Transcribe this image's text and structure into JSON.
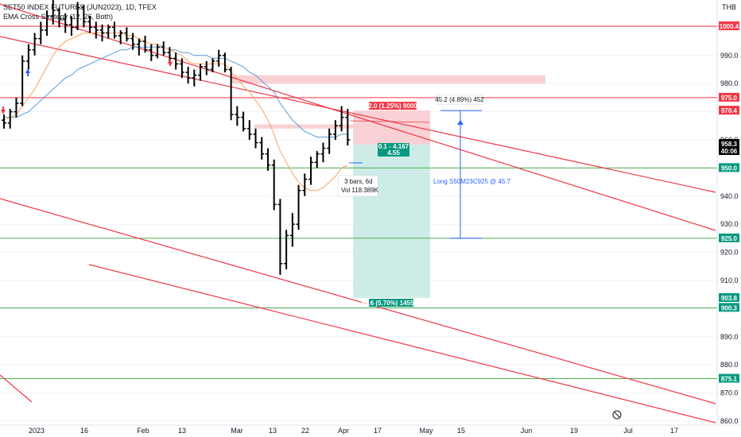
{
  "header": {
    "symbol": "SET50 INDEX FUTURES (JUN2023), 1D, TFEX",
    "indicator": "EMA Cross Strategy (12, 26, Both)",
    "currency": "THB"
  },
  "colors": {
    "up": "#000000",
    "channel": "#f23645",
    "resistance": "#f23645",
    "support": "#4caf50",
    "ema_fast": "#f7a45c",
    "ema_slow": "#5b9bd5",
    "stop_zone": "#f7c5c9",
    "target_zone": "#c6e9e3",
    "tag_red": "#f23645",
    "tag_green": "#089981",
    "price_tag": "#000000",
    "signal_up": "#2962ff",
    "signal_down": "#f23645"
  },
  "chart_data": {
    "type": "candlestick",
    "yaxis": {
      "min": 857,
      "max": 1011,
      "ticks": [
        860,
        870,
        880,
        890,
        900,
        910,
        920,
        930,
        940,
        950,
        960,
        970,
        980,
        990,
        1000
      ]
    },
    "xaxis": {
      "labels": [
        "2023",
        "16",
        "Feb",
        "13",
        "Mar",
        "13",
        "22",
        "Apr",
        "17",
        "May",
        "15",
        "Jun",
        "19",
        "Jul",
        "17"
      ]
    },
    "ohlc": [
      [
        967,
        969,
        964,
        966
      ],
      [
        966,
        971,
        964,
        970
      ],
      [
        970,
        975,
        968,
        973
      ],
      [
        973,
        990,
        972,
        988
      ],
      [
        988,
        994,
        985,
        992
      ],
      [
        992,
        998,
        990,
        996
      ],
      [
        996,
        1002,
        994,
        999
      ],
      [
        999,
        1006,
        997,
        1004
      ],
      [
        1004,
        1010,
        1001,
        1006
      ],
      [
        1006,
        1007,
        1000,
        1003
      ],
      [
        1003,
        1005,
        998,
        1001
      ],
      [
        1001,
        1004,
        997,
        1000
      ],
      [
        1000,
        1009,
        999,
        1007
      ],
      [
        1007,
        1008,
        1000,
        1002
      ],
      [
        1002,
        1004,
        998,
        1000
      ],
      [
        1000,
        1002,
        996,
        999
      ],
      [
        999,
        1001,
        995,
        998
      ],
      [
        998,
        1001,
        996,
        1000
      ],
      [
        1000,
        1002,
        996,
        997
      ],
      [
        997,
        999,
        994,
        998
      ],
      [
        998,
        1000,
        995,
        996
      ],
      [
        996,
        998,
        992,
        994
      ],
      [
        994,
        996,
        990,
        995
      ],
      [
        995,
        997,
        991,
        992
      ],
      [
        992,
        994,
        988,
        990
      ],
      [
        990,
        994,
        989,
        993
      ],
      [
        993,
        995,
        990,
        991
      ],
      [
        991,
        993,
        987,
        989
      ],
      [
        989,
        991,
        985,
        987
      ],
      [
        987,
        989,
        982,
        984
      ],
      [
        984,
        986,
        980,
        982
      ],
      [
        982,
        985,
        979,
        983
      ],
      [
        983,
        987,
        981,
        986
      ],
      [
        986,
        988,
        983,
        985
      ],
      [
        985,
        989,
        984,
        988
      ],
      [
        988,
        992,
        986,
        990
      ],
      [
        990,
        991,
        984,
        985
      ],
      [
        985,
        986,
        967,
        969
      ],
      [
        969,
        972,
        965,
        968
      ],
      [
        968,
        970,
        963,
        964
      ],
      [
        964,
        967,
        960,
        962
      ],
      [
        962,
        964,
        957,
        959
      ],
      [
        959,
        961,
        953,
        955
      ],
      [
        955,
        957,
        949,
        951
      ],
      [
        951,
        953,
        935,
        937
      ],
      [
        937,
        939,
        912,
        916
      ],
      [
        916,
        928,
        914,
        926
      ],
      [
        926,
        934,
        922,
        930
      ],
      [
        930,
        944,
        928,
        942
      ],
      [
        942,
        948,
        940,
        946
      ],
      [
        946,
        954,
        944,
        952
      ],
      [
        952,
        956,
        950,
        955
      ],
      [
        955,
        959,
        952,
        957
      ],
      [
        957,
        964,
        955,
        962
      ],
      [
        962,
        967,
        960,
        965
      ],
      [
        965,
        972,
        963,
        968
      ],
      [
        968,
        971,
        958,
        960
      ]
    ],
    "ema_fast": [
      967,
      968,
      969,
      972,
      975,
      978,
      982,
      986,
      990,
      993,
      995,
      996,
      997,
      998,
      998,
      998,
      998,
      998,
      998,
      998,
      997,
      997,
      996,
      995,
      994,
      994,
      993,
      992,
      991,
      990,
      988,
      987,
      987,
      987,
      987,
      987,
      987,
      984,
      982,
      979,
      977,
      974,
      971,
      967,
      962,
      956,
      952,
      948,
      945,
      943,
      942,
      942,
      943,
      945,
      947,
      950,
      951
    ],
    "ema_slow": [
      968,
      968,
      968,
      969,
      970,
      972,
      974,
      976,
      978,
      980,
      982,
      983,
      985,
      986,
      987,
      988,
      989,
      990,
      991,
      992,
      992,
      993,
      993,
      993,
      993,
      993,
      993,
      992,
      992,
      991,
      991,
      990,
      990,
      990,
      989,
      989,
      989,
      988,
      987,
      986,
      984,
      983,
      981,
      979,
      977,
      973,
      970,
      967,
      965,
      963,
      962,
      961,
      961,
      961,
      961,
      962,
      962
    ],
    "horizontal_levels": [
      {
        "price": 1000.4,
        "label": "1000.4",
        "kind": "resistance"
      },
      {
        "price": 975.0,
        "label": "975.0",
        "kind": "resistance"
      },
      {
        "price": 950.0,
        "label": "950.0",
        "kind": "support"
      },
      {
        "price": 925.0,
        "label": "925.0",
        "kind": "support"
      },
      {
        "price": 900.3,
        "label": "900.3",
        "kind": "support"
      },
      {
        "price": 875.1,
        "label": "875.1",
        "kind": "support"
      }
    ],
    "axis_tags": [
      {
        "price": 970.4,
        "label": "970.4",
        "kind": "stop"
      },
      {
        "price": 903.8,
        "label": "903.8",
        "kind": "target"
      }
    ],
    "current_price": {
      "price": 958.3,
      "label": "958.3",
      "countdown": "40:06"
    },
    "position": {
      "entry": 958.3,
      "stop": 970.4,
      "target": 903.8,
      "stop_label": "12.0 (1.25%) 90000",
      "target_label": "54.6 (5.70%) 145500",
      "entry_label_1": "0.1 - 4.167",
      "entry_label_2": "4.55"
    },
    "annotations": {
      "range_label": "3 bars, 6d",
      "volume_label": "Vol 118.389K",
      "long_label": "Long S50M23C925 @ 45.7",
      "measure_label": "45.2 (4.89%) 452"
    }
  }
}
